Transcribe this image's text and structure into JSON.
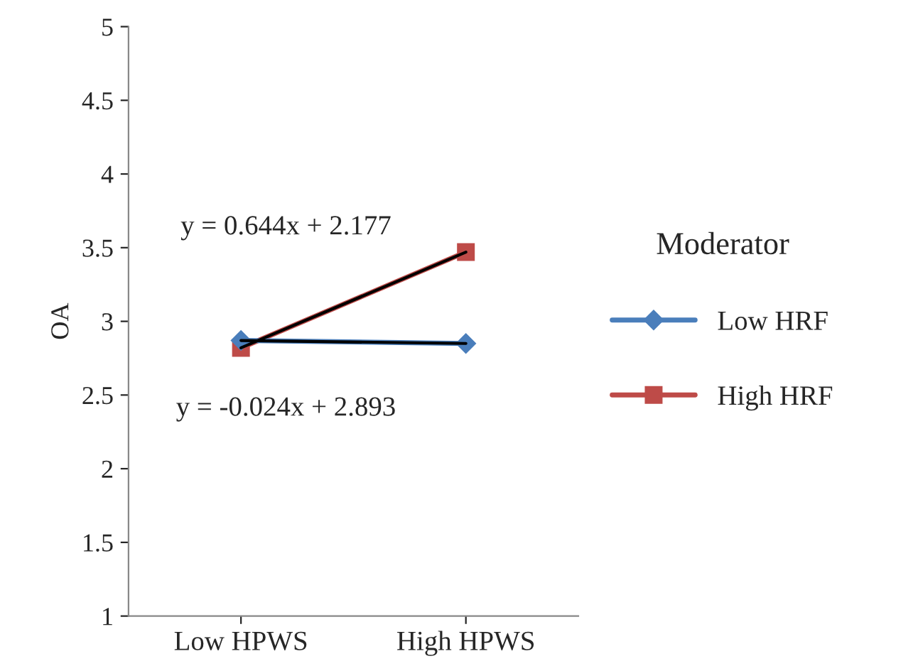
{
  "chart_data": {
    "type": "line",
    "ylabel": "OA",
    "legend_title": "Moderator",
    "legend": "right",
    "categories": [
      "Low HPWS",
      "High HPWS"
    ],
    "series": [
      {
        "name": "Low HRF",
        "color": "#4a7ebb",
        "marker": "diamond",
        "values": [
          2.87,
          2.85
        ]
      },
      {
        "name": "High HRF",
        "color": "#be4b48",
        "marker": "square",
        "values": [
          2.82,
          3.47
        ]
      },
      {
        "color": "#000000",
        "marker": "none",
        "values": [
          2.87,
          2.85
        ]
      },
      {
        "color": "#000000",
        "marker": "none",
        "values": [
          2.82,
          3.47
        ]
      }
    ],
    "ylim": [
      1,
      5
    ],
    "yticks": [
      1,
      1.5,
      2,
      2.5,
      3,
      3.5,
      4,
      4.5,
      5
    ],
    "grid": false,
    "annotations": [
      "y = 0.644x + 2.177",
      "y = -0.024x + 2.893"
    ]
  }
}
